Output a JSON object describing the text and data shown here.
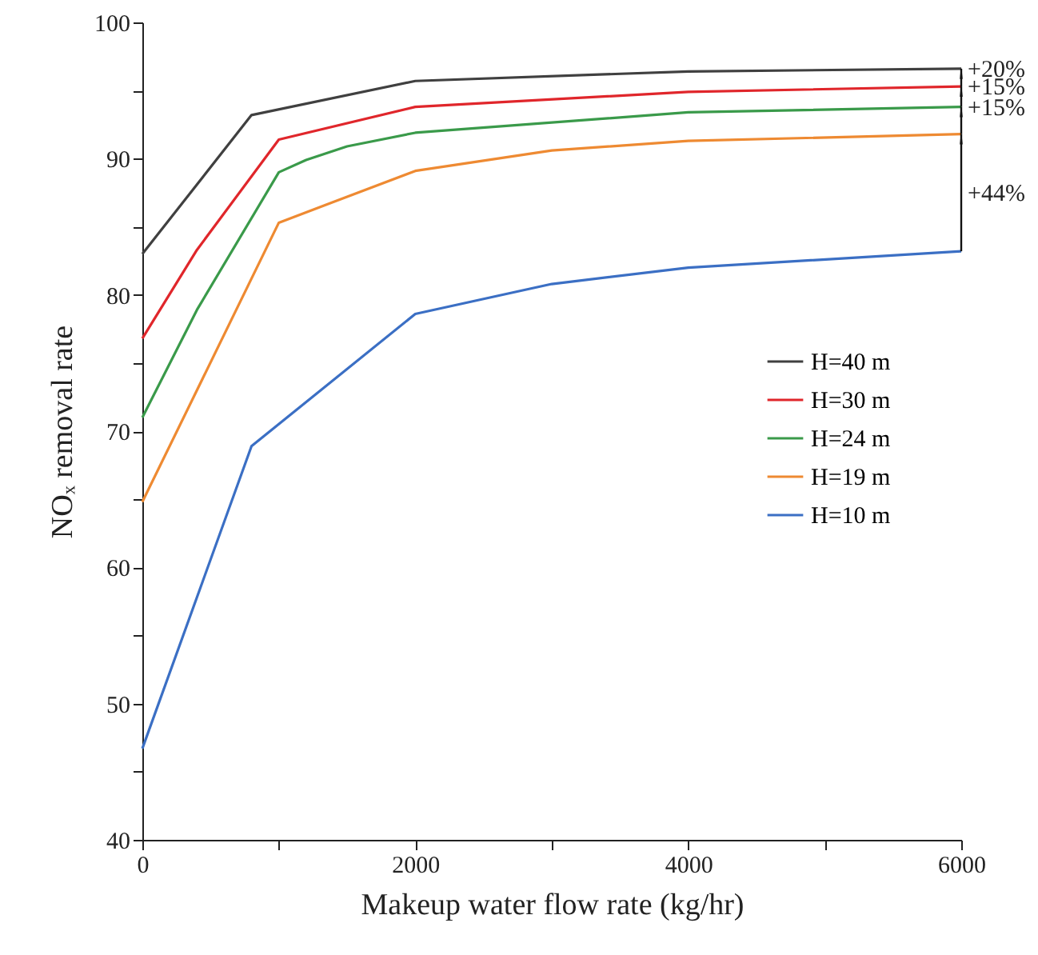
{
  "chart_data": {
    "type": "line",
    "xlabel": "Makeup water flow rate (kg/hr)",
    "ylabel": "NOₓ removal rate",
    "xlim": [
      0,
      6000
    ],
    "xticks": [
      0,
      {
        "value": 1000,
        "label": null
      },
      2000,
      {
        "value": 3000,
        "label": null
      },
      4000,
      {
        "value": 5000,
        "label": null
      },
      6000
    ],
    "ylim": [
      40,
      100
    ],
    "yticks": [
      40,
      {
        "value": 45,
        "label": null
      },
      50,
      {
        "value": 55,
        "label": null
      },
      60,
      {
        "value": 65,
        "label": null
      },
      70,
      {
        "value": 75,
        "label": null
      },
      80,
      {
        "value": 85,
        "label": null
      },
      90,
      {
        "value": 95,
        "label": null
      },
      100
    ],
    "grid": false,
    "legend": "right",
    "marker": "none",
    "line_style": "solid",
    "series": [
      {
        "name": "H=40 m",
        "color": "#404040",
        "x": [
          0,
          800,
          2000,
          4000,
          6000
        ],
        "values": [
          83.0,
          93.2,
          95.7,
          96.4,
          96.6
        ]
      },
      {
        "name": "H=30 m",
        "color": "#e0262b",
        "x": [
          0,
          400,
          1000,
          2000,
          4000,
          6000
        ],
        "values": [
          76.8,
          83.3,
          91.4,
          93.8,
          94.9,
          95.3
        ]
      },
      {
        "name": "H=24 m",
        "color": "#3a9a4a",
        "x": [
          0,
          400,
          1000,
          1200,
          1500,
          2000,
          4000,
          6000
        ],
        "values": [
          71.0,
          78.9,
          89.0,
          89.9,
          90.9,
          91.9,
          93.4,
          93.8
        ]
      },
      {
        "name": "H=19 m",
        "color": "#ee8a32",
        "x": [
          0,
          1000,
          2000,
          3000,
          4000,
          6000
        ],
        "values": [
          64.8,
          85.3,
          89.1,
          90.6,
          91.3,
          91.8
        ]
      },
      {
        "name": "H=10 m",
        "color": "#3b6fc4",
        "x": [
          0,
          800,
          2000,
          3000,
          4000,
          6000
        ],
        "values": [
          46.7,
          68.9,
          78.6,
          80.8,
          82.0,
          83.2
        ]
      }
    ],
    "annotations": [
      "+20%",
      "+15%",
      "+15%",
      "+44%"
    ]
  }
}
